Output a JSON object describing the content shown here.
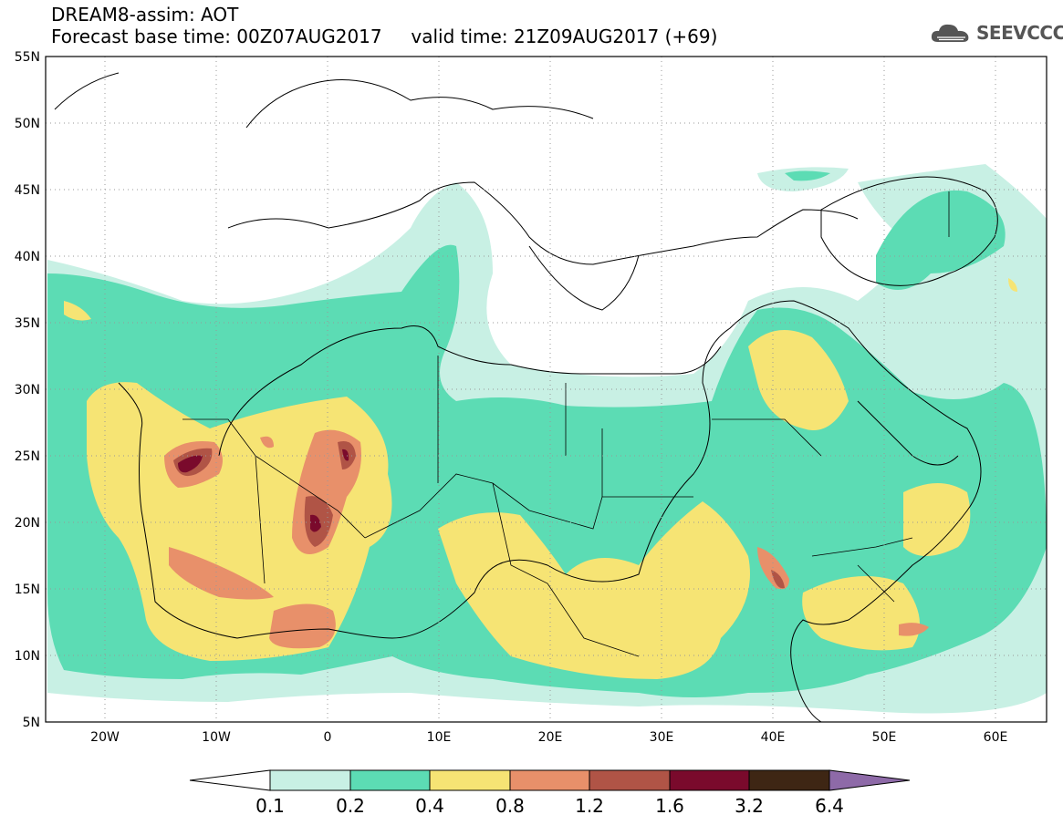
{
  "title": {
    "line1": "DREAM8-assim: AOT",
    "line2": "Forecast base time: 00Z07AUG2017     valid time: 21Z09AUG2017 (+69)"
  },
  "logo": {
    "text": "SEEVCCC",
    "icon": "cloud-logo-icon"
  },
  "map": {
    "lat_ticks": [
      "55N",
      "50N",
      "45N",
      "40N",
      "35N",
      "30N",
      "25N",
      "20N",
      "15N",
      "10N",
      "5N"
    ],
    "lon_ticks": [
      "20W",
      "10W",
      "0",
      "10E",
      "20E",
      "30E",
      "40E",
      "50E",
      "60E"
    ],
    "lon_range": [
      -25,
      65
    ],
    "lat_range": [
      5,
      55
    ],
    "grid": "dotted"
  },
  "colorbar": {
    "labels": [
      "0.1",
      "0.2",
      "0.4",
      "0.8",
      "1.2",
      "1.6",
      "3.2",
      "6.4"
    ],
    "colors": [
      "#ffffff",
      "#c8f0e4",
      "#5cdcb4",
      "#f6e474",
      "#e8906a",
      "#b05446",
      "#7a0a2c",
      "#3e2614",
      "#8e6aa8"
    ]
  }
}
